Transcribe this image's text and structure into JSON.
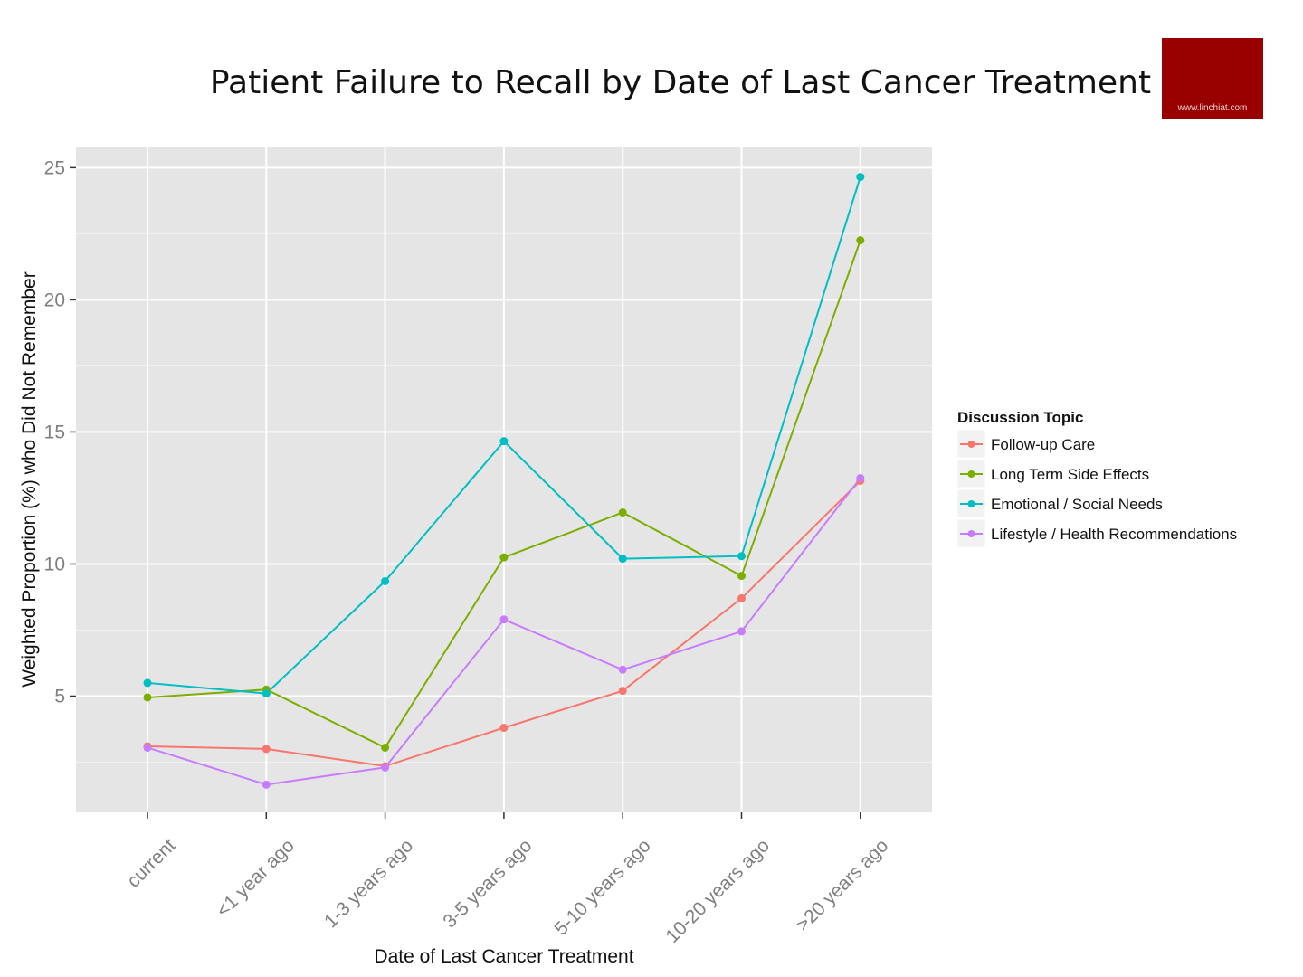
{
  "logo": {
    "text": "www.linchiat.com",
    "color": "#990000"
  },
  "chart_data": {
    "type": "line",
    "title": "Patient Failure to Recall by Date of Last Cancer Treatment",
    "xlabel": "Date of Last Cancer Treatment",
    "ylabel": "Weighted Proportion (%) who Did Not Remember",
    "categories": [
      "current",
      "<1 year ago",
      "1-3 years ago",
      "3-5 years ago",
      "5-10 years ago",
      "10-20 years ago",
      ">20 years ago"
    ],
    "yticks": [
      5,
      10,
      15,
      20,
      25
    ],
    "ylim": [
      0.6,
      25.8
    ],
    "grid": true,
    "panel_background": "#e5e5e5",
    "legend": {
      "title": "Discussion Topic",
      "placement": "right"
    },
    "series": [
      {
        "name": "Follow-up Care",
        "color": "#F8766D",
        "values": [
          3.1,
          3.0,
          2.35,
          3.8,
          5.2,
          8.7,
          13.15
        ]
      },
      {
        "name": "Long Term Side Effects",
        "color": "#7CAE00",
        "values": [
          4.95,
          5.25,
          3.05,
          10.25,
          11.95,
          9.55,
          22.25
        ]
      },
      {
        "name": "Emotional / Social Needs",
        "color": "#00BFC4",
        "values": [
          5.5,
          5.1,
          9.35,
          14.65,
          10.2,
          10.3,
          24.65
        ]
      },
      {
        "name": "Lifestyle / Health Recommendations",
        "color": "#C77CFF",
        "values": [
          3.05,
          1.65,
          2.3,
          7.9,
          6.0,
          7.45,
          13.25
        ]
      }
    ]
  }
}
